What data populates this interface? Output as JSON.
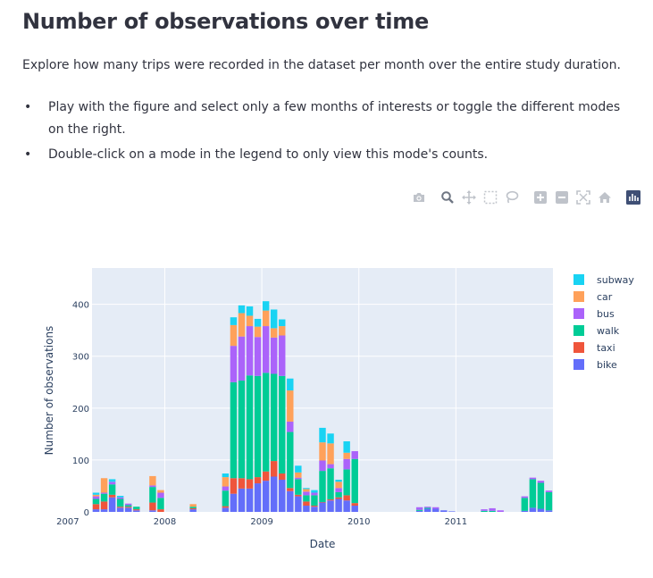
{
  "page": {
    "title": "Number of observations over time",
    "intro": "Explore how many trips were recorded in the dataset per month over the entire study duration.",
    "bullets": [
      "Play with the figure and select only a few months of interests or toggle the different modes on the right.",
      "Double-click on a mode in the legend to only view this mode's counts."
    ]
  },
  "modebar": [
    {
      "name": "camera-icon",
      "label": "Download plot as a png"
    },
    {
      "name": "zoom-icon",
      "label": "Zoom"
    },
    {
      "name": "pan-icon",
      "label": "Pan"
    },
    {
      "name": "box-select-icon",
      "label": "Box Select"
    },
    {
      "name": "lasso-select-icon",
      "label": "Lasso Select"
    },
    {
      "name": "zoom-in-icon",
      "label": "Zoom in"
    },
    {
      "name": "zoom-out-icon",
      "label": "Zoom out"
    },
    {
      "name": "autoscale-icon",
      "label": "Autoscale"
    },
    {
      "name": "reset-axes-icon",
      "label": "Reset axes"
    },
    {
      "name": "plotly-logo-icon",
      "label": "Produced with Plotly"
    }
  ],
  "chart_data": {
    "type": "bar",
    "barmode": "stack",
    "xlabel": "Date",
    "ylabel": "Number of observations",
    "ylim": [
      0,
      470
    ],
    "yticks": [
      0,
      100,
      200,
      300,
      400
    ],
    "xticks": [
      "2007",
      "2008",
      "2009",
      "2010",
      "2011"
    ],
    "grid": true,
    "legend_position": "right",
    "categories": [
      "2007-04",
      "2007-05",
      "2007-06",
      "2007-07",
      "2007-08",
      "2007-09",
      "2007-10",
      "2007-11",
      "2007-12",
      "2008-01",
      "2008-02",
      "2008-03",
      "2008-04",
      "2008-05",
      "2008-06",
      "2008-07",
      "2008-08",
      "2008-09",
      "2008-10",
      "2008-11",
      "2008-12",
      "2009-01",
      "2009-02",
      "2009-03",
      "2009-04",
      "2009-05",
      "2009-06",
      "2009-07",
      "2009-08",
      "2009-09",
      "2009-10",
      "2009-11",
      "2009-12",
      "2010-01",
      "2010-02",
      "2010-03",
      "2010-04",
      "2010-05",
      "2010-06",
      "2010-07",
      "2010-08",
      "2010-09",
      "2010-10",
      "2010-11",
      "2010-12",
      "2011-01",
      "2011-02",
      "2011-03",
      "2011-04",
      "2011-05",
      "2011-06",
      "2011-07",
      "2011-08",
      "2011-09",
      "2011-10",
      "2011-11",
      "2011-12"
    ],
    "series": [
      {
        "name": "bike",
        "color": "#636efa",
        "values": [
          5,
          5,
          28,
          8,
          8,
          3,
          0,
          3,
          0,
          0,
          0,
          0,
          5,
          0,
          0,
          0,
          8,
          35,
          45,
          45,
          55,
          60,
          68,
          62,
          40,
          30,
          12,
          10,
          18,
          22,
          25,
          22,
          12,
          0,
          0,
          0,
          0,
          0,
          0,
          0,
          2,
          6,
          6,
          3,
          1,
          0,
          0,
          0,
          0,
          0,
          0,
          0,
          0,
          2,
          8,
          6,
          3
        ]
      },
      {
        "name": "taxi",
        "color": "#ef553b",
        "values": [
          10,
          15,
          5,
          2,
          2,
          2,
          0,
          15,
          5,
          0,
          0,
          0,
          2,
          0,
          0,
          0,
          3,
          30,
          20,
          18,
          12,
          18,
          30,
          12,
          6,
          3,
          8,
          2,
          1,
          2,
          3,
          10,
          5,
          0,
          0,
          0,
          0,
          0,
          0,
          0,
          0,
          0,
          0,
          0,
          0,
          0,
          0,
          0,
          0,
          0,
          0,
          0,
          0,
          0,
          0,
          0,
          0
        ]
      },
      {
        "name": "walk",
        "color": "#00cc96",
        "values": [
          10,
          15,
          20,
          15,
          3,
          5,
          0,
          30,
          22,
          0,
          0,
          0,
          3,
          0,
          0,
          0,
          30,
          185,
          188,
          200,
          195,
          190,
          168,
          188,
          108,
          30,
          12,
          20,
          60,
          60,
          10,
          50,
          85,
          0,
          0,
          0,
          0,
          0,
          0,
          0,
          2,
          2,
          0,
          0,
          0,
          0,
          0,
          0,
          2,
          2,
          0,
          0,
          0,
          25,
          55,
          50,
          35
        ]
      },
      {
        "name": "bus",
        "color": "#ab63fa",
        "values": [
          5,
          2,
          5,
          3,
          3,
          0,
          0,
          3,
          10,
          0,
          0,
          0,
          0,
          0,
          0,
          0,
          8,
          70,
          85,
          95,
          75,
          90,
          70,
          78,
          20,
          3,
          7,
          5,
          20,
          8,
          8,
          20,
          15,
          0,
          0,
          0,
          0,
          0,
          0,
          0,
          5,
          2,
          3,
          0,
          0,
          0,
          0,
          0,
          3,
          5,
          3,
          0,
          0,
          3,
          3,
          4,
          3
        ]
      },
      {
        "name": "car",
        "color": "#ffa15a",
        "values": [
          3,
          28,
          0,
          0,
          0,
          0,
          0,
          18,
          5,
          0,
          0,
          0,
          5,
          0,
          0,
          0,
          18,
          40,
          45,
          20,
          20,
          30,
          18,
          18,
          60,
          10,
          5,
          0,
          35,
          40,
          12,
          12,
          0,
          0,
          0,
          0,
          0,
          0,
          0,
          0,
          0,
          0,
          0,
          0,
          0,
          0,
          0,
          0,
          0,
          0,
          0,
          0,
          0,
          0,
          0,
          0,
          0
        ]
      },
      {
        "name": "subway",
        "color": "#19d3f3",
        "values": [
          4,
          0,
          5,
          3,
          0,
          0,
          0,
          0,
          0,
          0,
          0,
          0,
          0,
          0,
          0,
          0,
          7,
          15,
          15,
          18,
          15,
          18,
          36,
          13,
          23,
          13,
          2,
          5,
          28,
          19,
          4,
          22,
          0,
          0,
          0,
          0,
          0,
          0,
          0,
          0,
          0,
          0,
          0,
          0,
          0,
          0,
          0,
          0,
          0,
          0,
          0,
          0,
          0,
          0,
          0,
          0,
          0
        ]
      }
    ]
  }
}
